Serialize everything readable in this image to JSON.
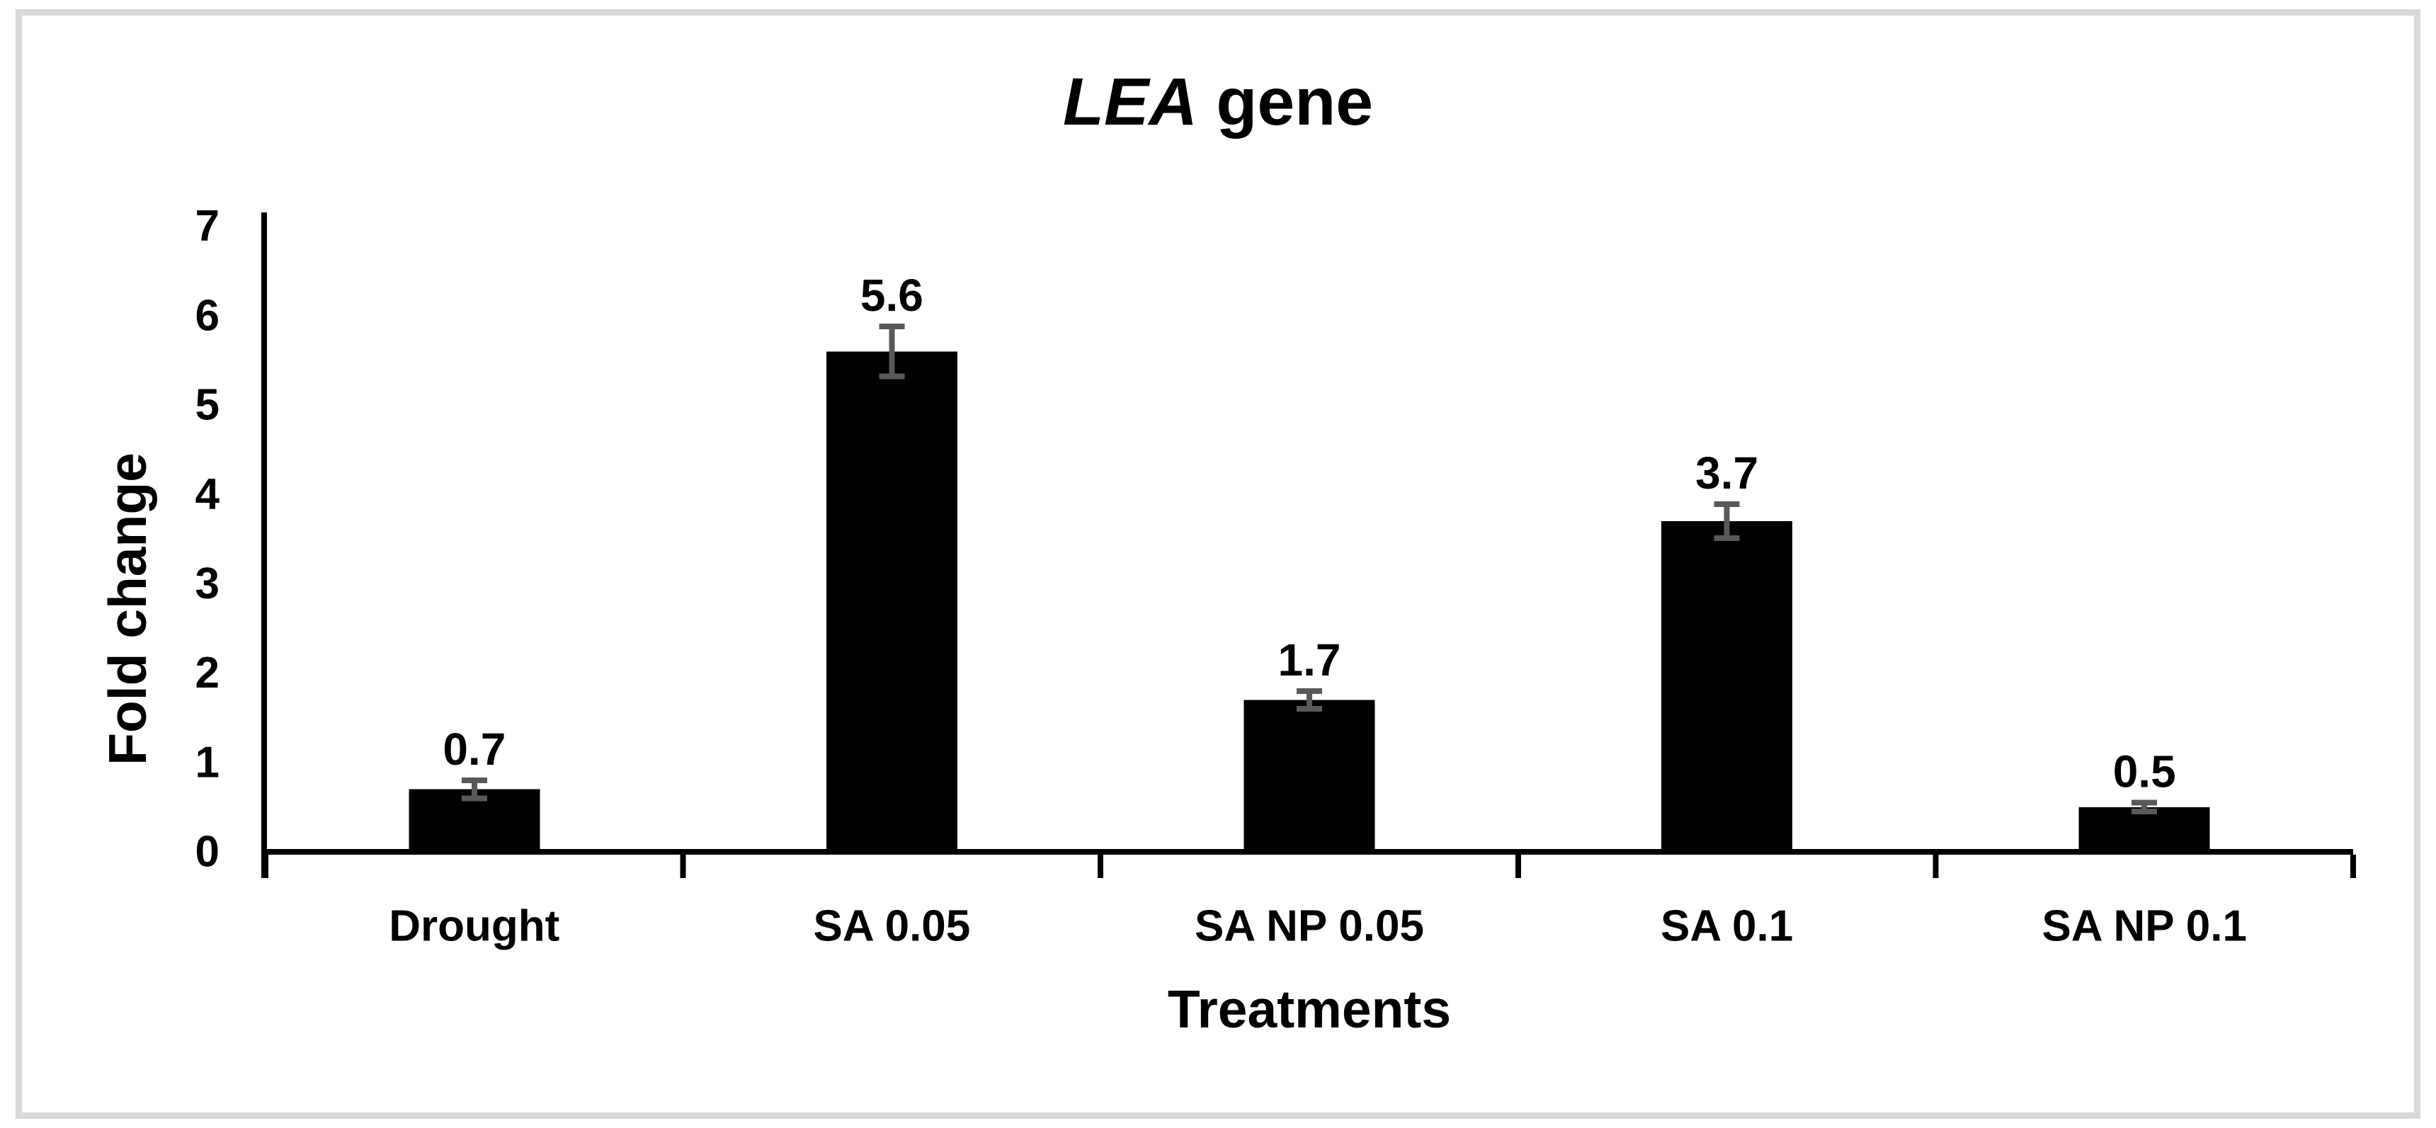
{
  "figure": {
    "border_color": "#d9d9d9",
    "background_color": "#ffffff"
  },
  "chart_data": {
    "type": "bar",
    "title": "LEA gene",
    "title_parts": {
      "italic": "LEA",
      "rest": " gene"
    },
    "xlabel": "Treatments",
    "ylabel": "Fold change",
    "categories": [
      "Drought",
      "SA 0.05",
      "SA NP 0.05",
      "SA 0.1",
      "SA NP 0.1"
    ],
    "values": [
      0.7,
      5.6,
      1.7,
      3.7,
      0.5
    ],
    "data_labels": [
      "0.7",
      "5.6",
      "1.7",
      "3.7",
      "0.5"
    ],
    "errors": [
      0.1,
      0.28,
      0.1,
      0.19,
      0.05
    ],
    "yticks": [
      "0",
      "1",
      "2",
      "3",
      "4",
      "5",
      "6",
      "7"
    ],
    "ylim": [
      0,
      7
    ],
    "bar_color": "#000000",
    "error_bar_color": "#595959",
    "axis_color": "#000000",
    "grid": false,
    "legend": false
  }
}
